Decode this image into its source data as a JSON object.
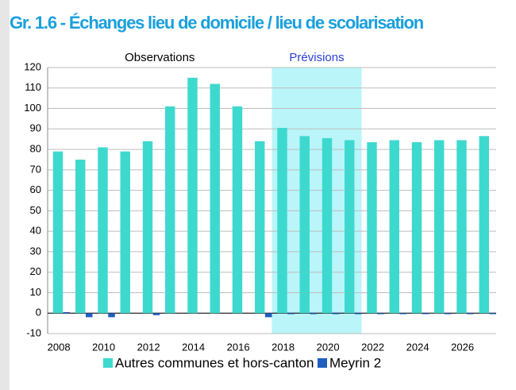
{
  "chart_data": {
    "type": "bar",
    "title": "Gr. 1.6 - Échanges lieu de domicile / lieu de scolarisation",
    "annotations": [
      "Observations",
      "Prévisions"
    ],
    "categories": [
      "2008",
      null,
      "2010",
      null,
      "2012",
      null,
      "2014",
      null,
      "2016",
      null,
      "2018",
      null,
      "2020",
      null,
      "2022",
      null,
      "2024",
      null,
      "2026",
      null
    ],
    "series": [
      {
        "name": "Autres communes et hors-canton",
        "color": "#3dd9cf",
        "values": [
          79,
          75,
          81,
          79,
          84,
          101,
          115,
          112,
          101,
          84,
          90.5,
          86.5,
          85.5,
          84.5,
          83.5,
          84.5,
          83.5,
          84.5,
          84.5,
          86.5
        ]
      },
      {
        "name": "Meyrin 2",
        "color": "#1f5fbf",
        "values": [
          0.5,
          -2,
          -2,
          0,
          -1,
          0,
          0,
          0,
          0,
          -2,
          -0.5,
          -0.5,
          -0.5,
          -0.5,
          -0.5,
          -0.5,
          -0.5,
          -0.5,
          -0.5,
          -0.5
        ]
      }
    ],
    "ylim": [
      -10,
      120
    ],
    "yticks": [
      -10,
      0,
      10,
      20,
      30,
      40,
      50,
      60,
      70,
      80,
      90,
      100,
      110,
      120
    ],
    "grid": true
  }
}
